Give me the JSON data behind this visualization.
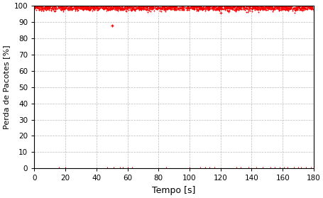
{
  "title": "",
  "xlabel": "Tempo [s]",
  "ylabel": "Perda de Pacotes [%]",
  "xlim": [
    0,
    180
  ],
  "ylim": [
    0,
    100
  ],
  "xticks": [
    0,
    20,
    40,
    60,
    80,
    100,
    120,
    140,
    160,
    180
  ],
  "yticks": [
    0,
    10,
    20,
    30,
    40,
    50,
    60,
    70,
    80,
    90,
    100
  ],
  "marker": "+",
  "color": "red",
  "markersize": 2.0,
  "markeredgewidth": 0.7,
  "background_color": "#ffffff",
  "grid_color": "#aaaaaa",
  "near100_count": 1800,
  "near100_mean": 98.8,
  "near100_std": 0.8,
  "near100_clip_low": 93.5,
  "outlier1_x": 50,
  "outlier1_y": 88,
  "outlier2_x": 120,
  "outlier2_y": 95.5,
  "outlier3_x": 125,
  "outlier3_y": 96.5,
  "near0_points_x": [
    16,
    20,
    47,
    51,
    55,
    57,
    60,
    63,
    85,
    100,
    107,
    110,
    113,
    116,
    130,
    133,
    138,
    143,
    147,
    152,
    155,
    158,
    161,
    163,
    167,
    170,
    172,
    175,
    178
  ],
  "near0_points_y": [
    0,
    0,
    0,
    0,
    0,
    0,
    0,
    0,
    0,
    0,
    0,
    0,
    0,
    0,
    0,
    0,
    0,
    0,
    0,
    0,
    0,
    0,
    0,
    0,
    0,
    0,
    0,
    0,
    0
  ],
  "xlabel_fontsize": 9,
  "ylabel_fontsize": 8,
  "tick_fontsize": 7.5
}
